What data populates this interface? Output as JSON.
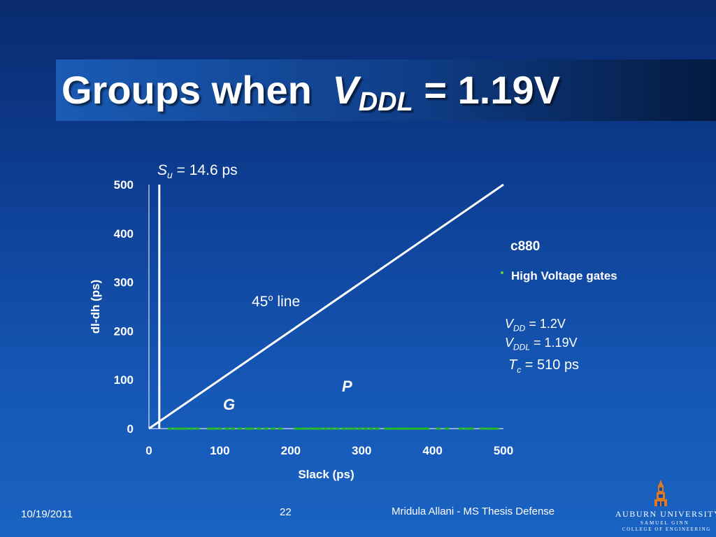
{
  "slide": {
    "title_prefix": "Groups when ",
    "title_var": "V",
    "title_sub": "DDL",
    "title_suffix": " = 1.19V"
  },
  "chart_data": {
    "type": "scatter",
    "x_label": "Slack (ps)",
    "y_label": "dl-dh (ps)",
    "xlim": [
      0,
      500
    ],
    "ylim": [
      0,
      500
    ],
    "x_ticks": [
      "0",
      "100",
      "200",
      "300",
      "400",
      "500"
    ],
    "y_ticks": [
      "0",
      "100",
      "200",
      "300",
      "400",
      "500"
    ],
    "x_tick_values": [
      0,
      100,
      200,
      300,
      400,
      500
    ],
    "y_tick_values": [
      0,
      100,
      200,
      300,
      400,
      500
    ],
    "series": [
      {
        "color": "#22bb22",
        "marker": "dash",
        "points": [
          [
            30,
            0
          ],
          [
            38,
            0
          ],
          [
            45,
            0
          ],
          [
            52,
            0
          ],
          [
            60,
            0
          ],
          [
            68,
            0
          ],
          [
            85,
            0
          ],
          [
            92,
            0
          ],
          [
            100,
            0
          ],
          [
            110,
            0
          ],
          [
            118,
            0
          ],
          [
            128,
            0
          ],
          [
            138,
            0
          ],
          [
            145,
            0
          ],
          [
            155,
            0
          ],
          [
            165,
            0
          ],
          [
            175,
            0
          ],
          [
            185,
            0
          ],
          [
            208,
            0
          ],
          [
            214,
            0
          ],
          [
            220,
            0
          ],
          [
            228,
            0
          ],
          [
            235,
            0
          ],
          [
            242,
            0
          ],
          [
            250,
            0
          ],
          [
            258,
            0
          ],
          [
            266,
            0
          ],
          [
            275,
            0
          ],
          [
            283,
            0
          ],
          [
            290,
            0
          ],
          [
            298,
            0
          ],
          [
            306,
            0
          ],
          [
            314,
            0
          ],
          [
            322,
            0
          ],
          [
            335,
            0
          ],
          [
            342,
            0
          ],
          [
            348,
            0
          ],
          [
            355,
            0
          ],
          [
            362,
            0
          ],
          [
            368,
            0
          ],
          [
            372,
            0
          ],
          [
            376,
            0
          ],
          [
            380,
            0
          ],
          [
            384,
            0
          ],
          [
            388,
            0
          ],
          [
            392,
            0
          ],
          [
            408,
            0
          ],
          [
            420,
            0
          ],
          [
            440,
            0
          ],
          [
            448,
            0
          ],
          [
            455,
            0
          ],
          [
            470,
            0
          ],
          [
            478,
            0
          ],
          [
            485,
            0
          ],
          [
            490,
            0
          ]
        ]
      }
    ],
    "reference_lines": [
      {
        "label_main": "45",
        "label_sup": "o",
        "label_rest": " line",
        "from": [
          0,
          0
        ],
        "to": [
          500,
          500
        ]
      },
      {
        "label_var": "S",
        "label_sub": "u",
        "label_rest": " = 14.6 ps",
        "x": 14.6
      }
    ],
    "region_labels": [
      "P",
      "G"
    ],
    "grid": false
  },
  "side_panel": {
    "circuit": "c880",
    "bullet": "High Voltage gates",
    "vdd_var": "V",
    "vdd_sub": "DD",
    "vdd_val": " = 1.2V",
    "vddl_var": "V",
    "vddl_sub": "DDL",
    "vddl_val": " = 1.19V",
    "tc_var": "T",
    "tc_sub": "c",
    "tc_val": " = 510 ps"
  },
  "footer": {
    "date": "10/19/2011",
    "page": "22",
    "author": "Mridula Allani - MS Thesis Defense"
  },
  "logo": {
    "name": "AUBURN UNIVERSITY",
    "line1": "SAMUEL GINN",
    "line2": "COLLEGE OF ENGINEERING",
    "icon": "auburn-tower-icon"
  },
  "colors": {
    "background_top": "#0a2a6e",
    "background_bottom": "#1a63c2",
    "data_points": "#22bb22",
    "bullet": "#66cc44",
    "logo_accent": "#e07a1f"
  }
}
